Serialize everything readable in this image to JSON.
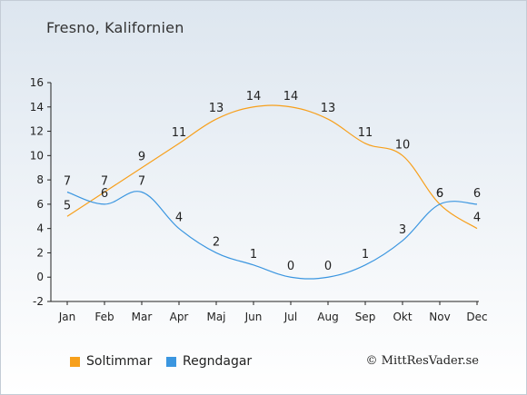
{
  "chart_data": {
    "type": "line",
    "title": "Fresno, Kalifornien",
    "categories": [
      "Jan",
      "Feb",
      "Mar",
      "Apr",
      "Maj",
      "Jun",
      "Jul",
      "Aug",
      "Sep",
      "Okt",
      "Nov",
      "Dec"
    ],
    "ylim": [
      -2,
      16
    ],
    "yticks": [
      -2,
      0,
      2,
      4,
      6,
      8,
      10,
      12,
      14,
      16
    ],
    "grid": false,
    "legend_position": "bottom-left",
    "series": [
      {
        "name": "Soltimmar",
        "color": "#f7a01c",
        "values": [
          5,
          7,
          9,
          11,
          13,
          14,
          14,
          13,
          11,
          10,
          6,
          4
        ]
      },
      {
        "name": "Regndagar",
        "color": "#3b96e0",
        "values": [
          7,
          6,
          7,
          4,
          2,
          1,
          0,
          0,
          1,
          3,
          6,
          6
        ]
      }
    ]
  },
  "copyright": "© MittResVader.se"
}
